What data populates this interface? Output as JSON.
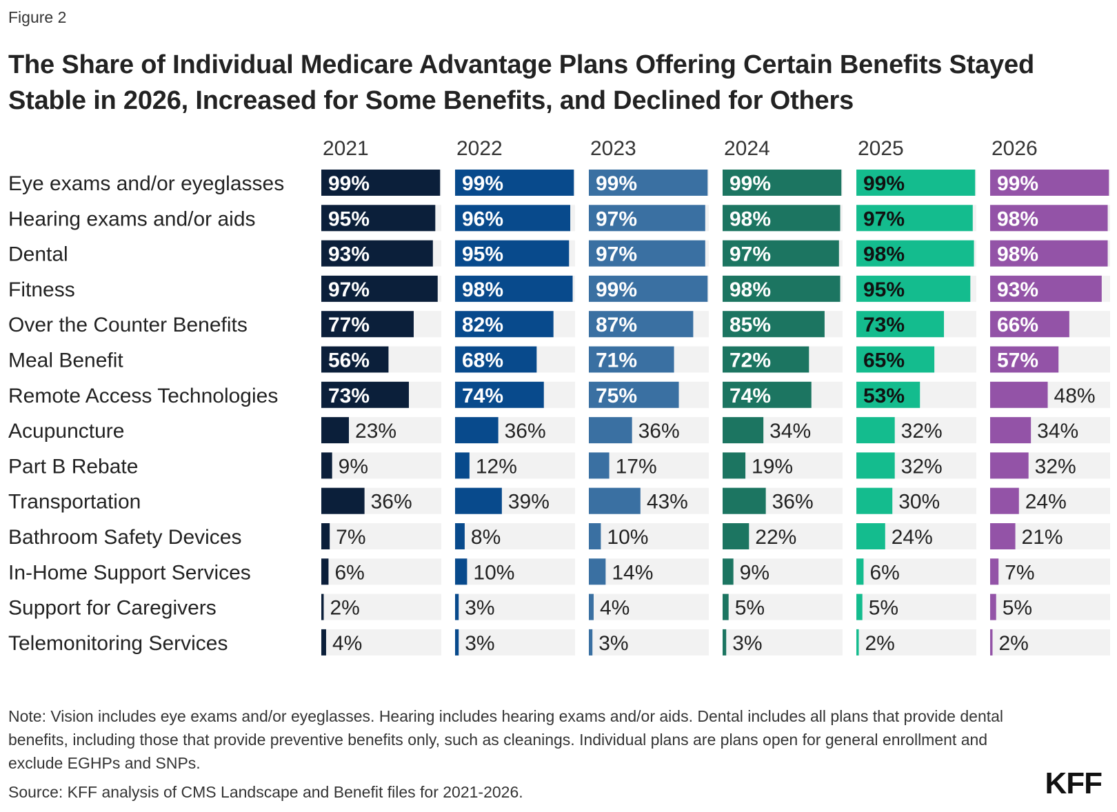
{
  "figure_label": "Figure 2",
  "title": "The Share of Individual Medicare Advantage Plans Offering Certain Benefits Stayed Stable in 2026, Increased for Some Benefits, and Declined for Others",
  "note": "Note: Vision includes eye exams and/or eyeglasses. Hearing includes hearing exams and/or aids. Dental includes all plans that provide dental benefits, including those that provide preventive benefits only, such as cleanings. Individual plans are plans open for general enrollment and exclude EGHPs and SNPs.",
  "source": "Source: KFF analysis of CMS Landscape and Benefit files for 2021-2026.",
  "logo": "KFF",
  "chart_data": {
    "type": "bar",
    "orientation": "horizontal small multiples",
    "value_format": "percent",
    "ylim": [
      0,
      100
    ],
    "categories": [
      "Eye exams and/or eyeglasses",
      "Hearing exams and/or aids",
      "Dental",
      "Fitness",
      "Over the Counter Benefits",
      "Meal Benefit",
      "Remote Access Technologies",
      "Acupuncture",
      "Part B Rebate",
      "Transportation",
      "Bathroom Safety Devices",
      "In-Home Support Services",
      "Support for Caregivers",
      "Telemonitoring Services"
    ],
    "series": [
      {
        "name": "2021",
        "color": "#0b1f3a",
        "values": [
          99,
          95,
          93,
          97,
          77,
          56,
          73,
          23,
          9,
          36,
          7,
          6,
          2,
          4
        ]
      },
      {
        "name": "2022",
        "color": "#084a8c",
        "values": [
          99,
          96,
          95,
          98,
          82,
          68,
          74,
          36,
          12,
          39,
          8,
          10,
          3,
          3
        ]
      },
      {
        "name": "2023",
        "color": "#3a70a2",
        "values": [
          99,
          97,
          97,
          99,
          87,
          71,
          75,
          36,
          17,
          43,
          10,
          14,
          4,
          3
        ]
      },
      {
        "name": "2024",
        "color": "#1c7561",
        "values": [
          99,
          98,
          97,
          98,
          85,
          72,
          74,
          34,
          19,
          36,
          22,
          9,
          5,
          3
        ]
      },
      {
        "name": "2025",
        "color": "#14bc8e",
        "values": [
          99,
          97,
          98,
          95,
          73,
          65,
          53,
          32,
          32,
          30,
          24,
          6,
          5,
          2
        ]
      },
      {
        "name": "2026",
        "color": "#9353a7",
        "values": [
          99,
          98,
          98,
          93,
          66,
          57,
          48,
          34,
          32,
          24,
          21,
          7,
          5,
          2
        ]
      }
    ],
    "track_color": "#f2f2f2",
    "inside_label_color": "#ffffff",
    "inside_label_color_dark": "#111111",
    "outside_label_color": "#222222"
  }
}
